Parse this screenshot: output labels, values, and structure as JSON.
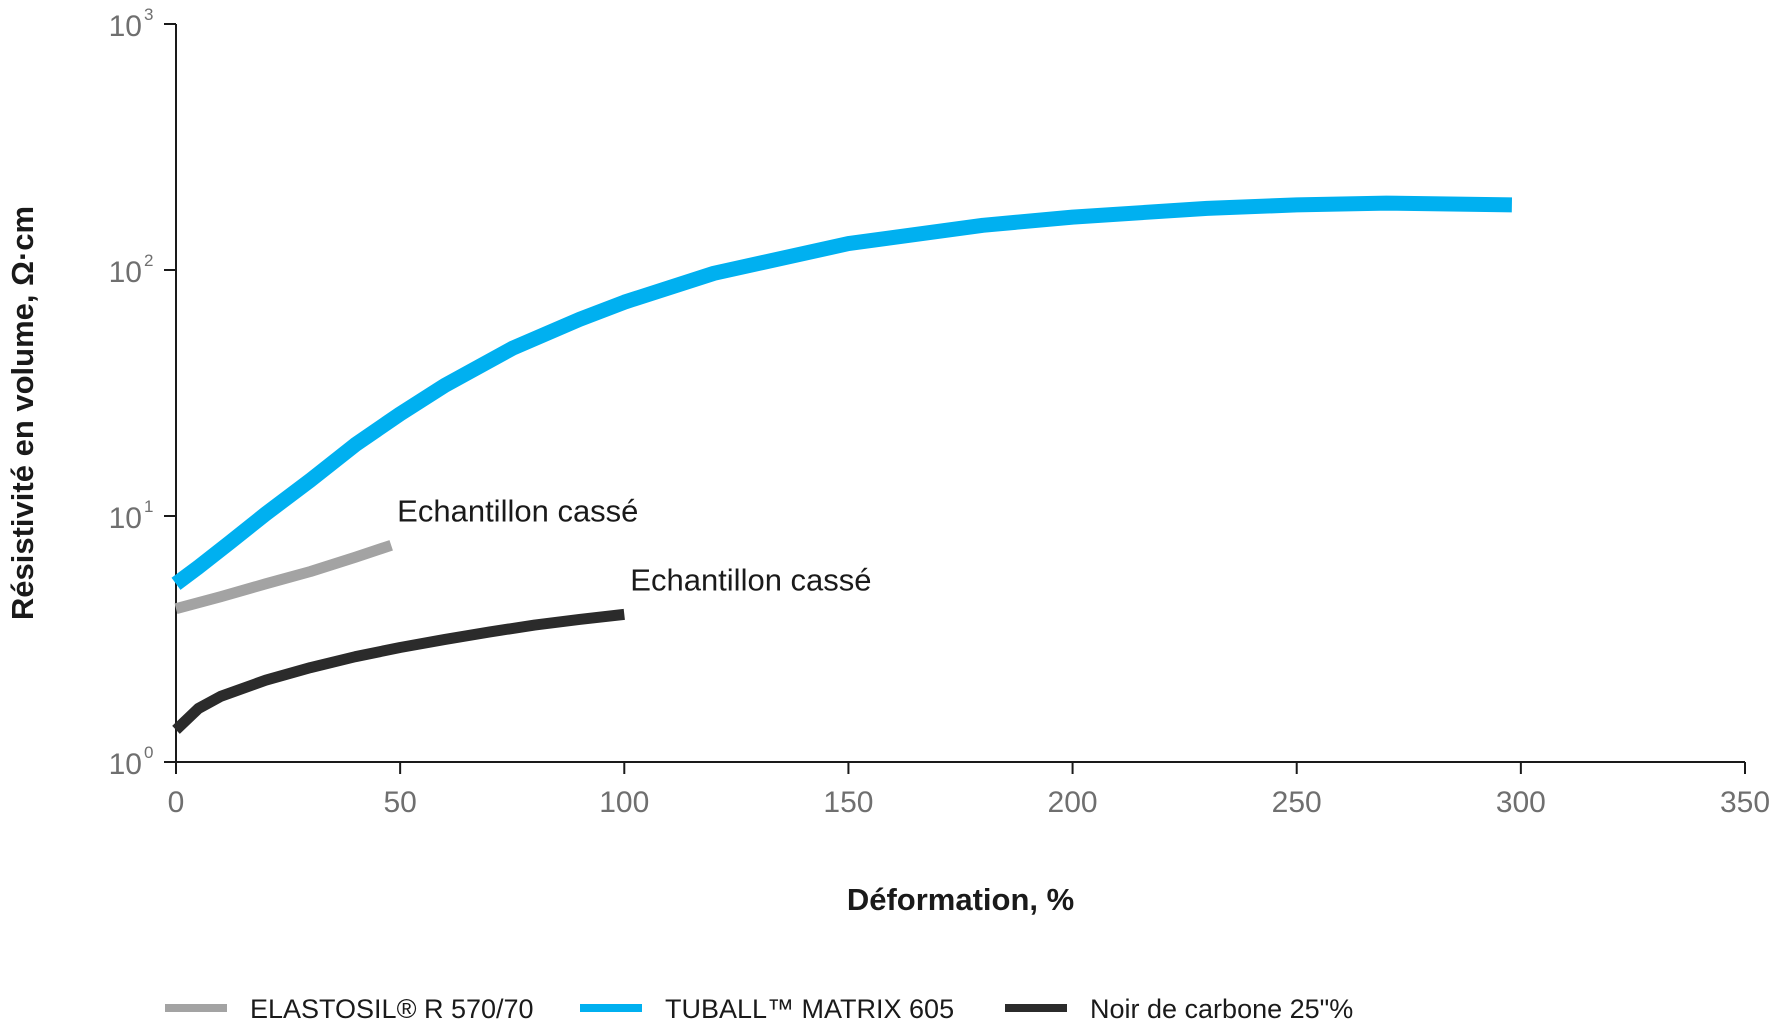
{
  "chart_data": {
    "type": "line",
    "xlabel": "Déformation, %",
    "ylabel": "Résistivité en volume, Ω·cm",
    "xlim": [
      0,
      350
    ],
    "ylim": [
      1,
      1000
    ],
    "y_scale": "log",
    "x_ticks": [
      "0",
      "50",
      "100",
      "150",
      "200",
      "250",
      "300",
      "350"
    ],
    "y_ticks": [
      {
        "base": "10",
        "exp": "0"
      },
      {
        "base": "10",
        "exp": "1"
      },
      {
        "base": "10",
        "exp": "2"
      },
      {
        "base": "10",
        "exp": "3"
      }
    ],
    "grid": false,
    "legend_position": "bottom",
    "series": [
      {
        "name": "ELASTOSIL® R 570/70",
        "color": "#a3a3a3",
        "x": [
          0,
          10,
          20,
          30,
          40,
          48
        ],
        "y": [
          4.2,
          4.7,
          5.3,
          5.95,
          6.8,
          7.6
        ]
      },
      {
        "name": "TUBALL™  MATRIX 605",
        "color": "#00b0f0",
        "x": [
          0,
          5,
          12,
          20,
          30,
          40,
          50,
          60,
          75,
          90,
          100,
          120,
          150,
          180,
          200,
          230,
          250,
          270,
          298
        ],
        "y": [
          5.3,
          6.2,
          7.8,
          10.2,
          14.0,
          19.5,
          26.0,
          34.0,
          48.0,
          63.0,
          74.0,
          97.0,
          128.0,
          152.0,
          164.0,
          178.0,
          184.0,
          187.0,
          184.0
        ]
      },
      {
        "name": "Noir de carbone 25\"%",
        "color": "#2b2b2b",
        "x": [
          0,
          5,
          10,
          20,
          30,
          40,
          50,
          60,
          70,
          80,
          90,
          100
        ],
        "y": [
          1.35,
          1.65,
          1.85,
          2.15,
          2.42,
          2.68,
          2.92,
          3.15,
          3.38,
          3.6,
          3.8,
          3.98
        ]
      }
    ],
    "annotations": [
      {
        "text": "Echantillon cassé",
        "x": 48,
        "y": 7.6
      },
      {
        "text": "Echantillon cassé",
        "x": 100,
        "y": 3.98
      }
    ]
  }
}
